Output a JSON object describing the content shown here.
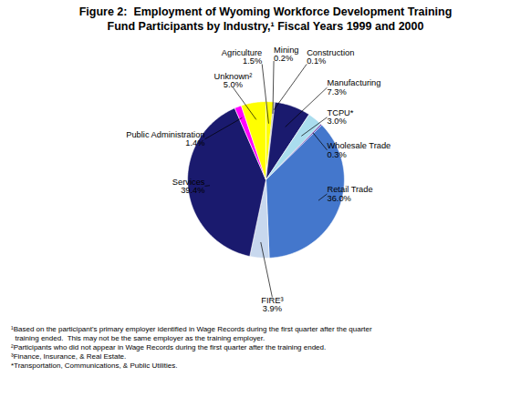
{
  "chart_data": {
    "type": "pie",
    "title": "Figure 2:  Employment of Wyoming Workforce Development Training",
    "subtitle": "Fund Participants by Industry,¹ Fiscal Years 1999 and 2000",
    "categories": [
      "Agriculture",
      "Mining",
      "Construction",
      "Manufacturing",
      "TCPU*",
      "Wholesale Trade",
      "Retail Trade",
      "FIRE³",
      "Services",
      "Public Administration",
      "Unknown²"
    ],
    "values": [
      1.5,
      0.2,
      0.1,
      7.3,
      3.0,
      0.3,
      36.0,
      3.9,
      39.4,
      1.4,
      5.0
    ],
    "value_labels": [
      "1.5%",
      "0.2%",
      "0.1%",
      "7.3%",
      "3.0%",
      "0.3%",
      "36.0%",
      "3.9%",
      "39.4%",
      "1.4%",
      "5.0%"
    ],
    "colors": [
      "#ffff00",
      "#2f2f2f",
      "#000000",
      "#1a1a6e",
      "#aaddee",
      "#6633aa",
      "#4477cc",
      "#c8d8ee",
      "#1a1a6e",
      "#ff00ff",
      "#ffff00"
    ],
    "data_labels": true,
    "annotations": [
      "¹Based on the participant's primary employer identified in Wage Records during the first quarter after the quarter",
      "  training ended.  This may not be the same employer as the training employer.",
      "²Participants who did not appear in Wage Records during the first quarter after the training ended.",
      "³Finance, Insurance, & Real Estate.",
      "*Transportation, Communications, & Public Utilities."
    ]
  }
}
